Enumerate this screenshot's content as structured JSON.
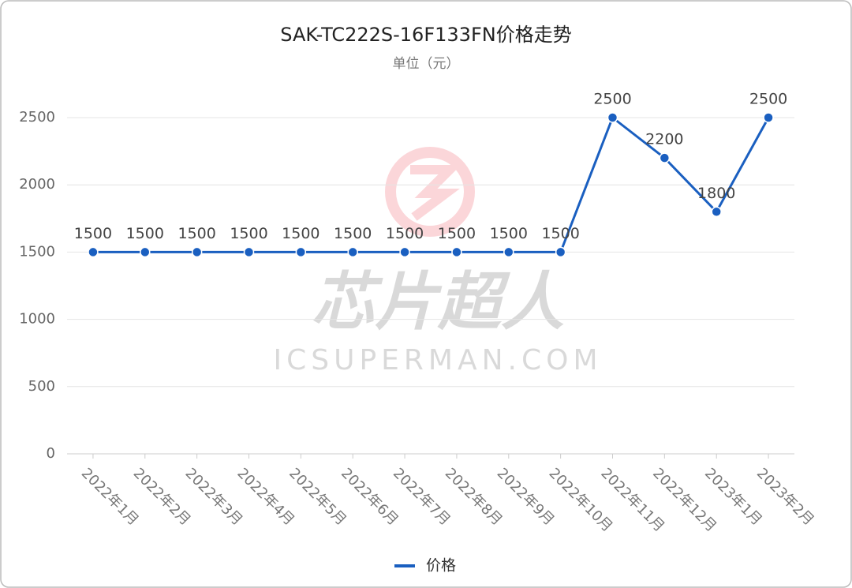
{
  "chart_data": {
    "type": "line",
    "title": "SAK-TC222S-16F133FN价格走势",
    "subtitle": "单位（元）",
    "watermark": {
      "logo_text": "芯片超人",
      "site": "ICSUPERMAN.COM"
    },
    "categories": [
      "2022年1月",
      "2022年2月",
      "2022年3月",
      "2022年4月",
      "2022年5月",
      "2022年6月",
      "2022年7月",
      "2022年8月",
      "2022年9月",
      "2022年10月",
      "2022年11月",
      "2022年12月",
      "2023年1月",
      "2023年2月"
    ],
    "series": [
      {
        "name": "价格",
        "color": "#1a5fc0",
        "values": [
          1500,
          1500,
          1500,
          1500,
          1500,
          1500,
          1500,
          1500,
          1500,
          1500,
          2500,
          2200,
          1800,
          2500
        ]
      }
    ],
    "ylim": [
      0,
      2500
    ],
    "yticks": [
      0,
      500,
      1000,
      1500,
      2000,
      2500
    ],
    "grid": true,
    "legend": "bottom"
  }
}
